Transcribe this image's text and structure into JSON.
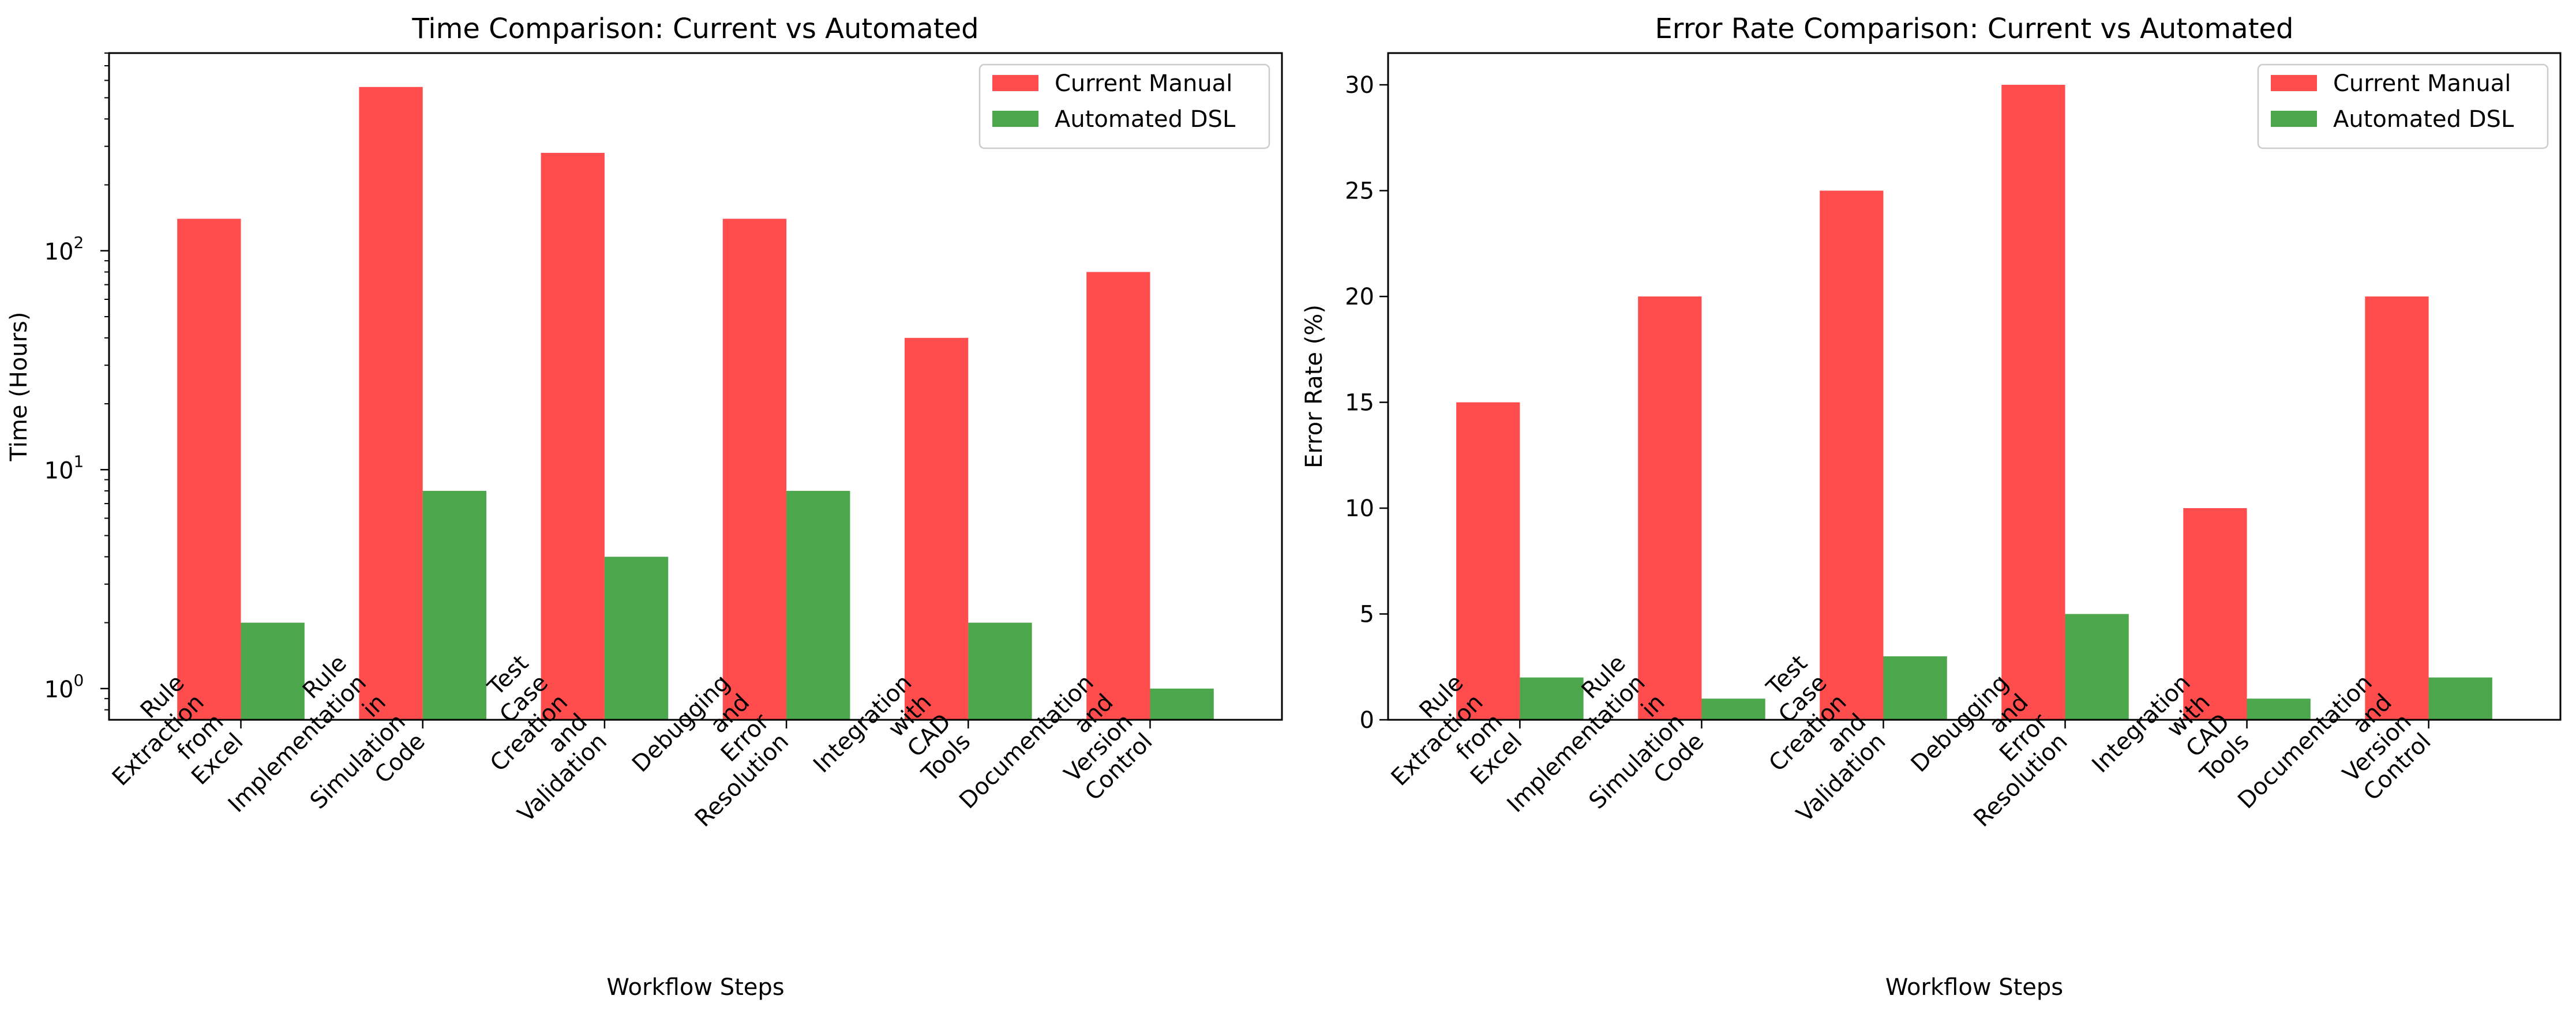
{
  "colors": {
    "current": "#ff0000",
    "automated": "#008000",
    "axes": "#000000",
    "background": "#ffffff"
  },
  "chart_data": [
    {
      "type": "bar",
      "title": "Time Comparison: Current vs Automated",
      "xlabel": "Workflow Steps",
      "ylabel": "Time (Hours)",
      "yscale": "log",
      "ylim": [
        0.72,
        800
      ],
      "yticks": [
        {
          "value": 1,
          "base": "10",
          "exp": "0"
        },
        {
          "value": 10,
          "base": "10",
          "exp": "1"
        },
        {
          "value": 100,
          "base": "10",
          "exp": "2"
        }
      ],
      "categories": [
        [
          "Rule",
          "Extraction",
          "from",
          "Excel"
        ],
        [
          "Rule",
          "Implementation",
          "in",
          "Simulation",
          "Code"
        ],
        [
          "Test",
          "Case",
          "Creation",
          "and",
          "Validation"
        ],
        [
          "Debugging",
          "and",
          "Error",
          "Resolution"
        ],
        [
          "Integration",
          "with",
          "CAD",
          "Tools"
        ],
        [
          "Documentation",
          "and",
          "Version",
          "Control"
        ]
      ],
      "series": [
        {
          "name": "Current Manual",
          "values": [
            140,
            560,
            280,
            140,
            40,
            80
          ]
        },
        {
          "name": "Automated DSL",
          "values": [
            2,
            8,
            4,
            8,
            2,
            1
          ]
        }
      ],
      "legend": "top-right",
      "grid": false
    },
    {
      "type": "bar",
      "title": "Error Rate Comparison: Current vs Automated",
      "xlabel": "Workflow Steps",
      "ylabel": "Error Rate (%)",
      "yscale": "linear",
      "ylim": [
        0,
        31.5
      ],
      "yticks": [
        {
          "value": 0,
          "label": "0"
        },
        {
          "value": 5,
          "label": "5"
        },
        {
          "value": 10,
          "label": "10"
        },
        {
          "value": 15,
          "label": "15"
        },
        {
          "value": 20,
          "label": "20"
        },
        {
          "value": 25,
          "label": "25"
        },
        {
          "value": 30,
          "label": "30"
        }
      ],
      "categories": [
        [
          "Rule",
          "Extraction",
          "from",
          "Excel"
        ],
        [
          "Rule",
          "Implementation",
          "in",
          "Simulation",
          "Code"
        ],
        [
          "Test",
          "Case",
          "Creation",
          "and",
          "Validation"
        ],
        [
          "Debugging",
          "and",
          "Error",
          "Resolution"
        ],
        [
          "Integration",
          "with",
          "CAD",
          "Tools"
        ],
        [
          "Documentation",
          "and",
          "Version",
          "Control"
        ]
      ],
      "series": [
        {
          "name": "Current Manual",
          "values": [
            15,
            20,
            25,
            30,
            10,
            20
          ]
        },
        {
          "name": "Automated DSL",
          "values": [
            2,
            1,
            3,
            5,
            1,
            2
          ]
        }
      ],
      "legend": "top-right",
      "grid": false
    }
  ]
}
